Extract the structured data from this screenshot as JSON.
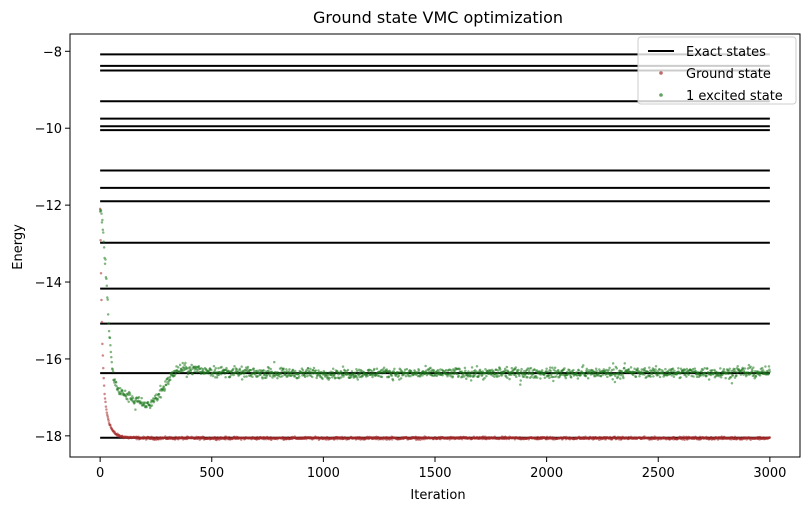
{
  "chart_data": {
    "type": "scatter",
    "title": "Ground state VMC optimization",
    "xlabel": "Iteration",
    "ylabel": "Energy",
    "xlim": [
      -135,
      3135
    ],
    "ylim": [
      -18.55,
      -7.55
    ],
    "x_ticks": [
      0,
      500,
      1000,
      1500,
      2000,
      2500,
      3000
    ],
    "y_ticks": [
      -18,
      -16,
      -14,
      -12,
      -10,
      -8
    ],
    "legend_position": "top-right",
    "legend": [
      {
        "label": "Exact states",
        "kind": "line",
        "color": "#000000"
      },
      {
        "label": "Ground state",
        "kind": "dot",
        "color": "#a52a2a"
      },
      {
        "label": "1 excited state",
        "kind": "dot",
        "color": "#1f7a1f"
      }
    ],
    "exact_states": {
      "name": "Exact states",
      "x_range": [
        0,
        3000
      ],
      "levels": [
        -18.05,
        -16.37,
        -15.08,
        -14.17,
        -12.98,
        -11.9,
        -11.55,
        -11.1,
        -10.05,
        -9.95,
        -9.75,
        -9.3,
        -8.5,
        -8.38,
        -8.08
      ],
      "color": "#000000"
    },
    "series": [
      {
        "name": "Ground state",
        "color": "#a52a2a",
        "x": [
          0,
          5,
          10,
          15,
          20,
          25,
          30,
          40,
          50,
          60,
          70,
          80,
          90,
          100,
          120,
          150,
          200,
          300,
          500,
          1000,
          1500,
          2000,
          2500,
          3000
        ],
        "y": [
          -12.1,
          -14.2,
          -15.6,
          -16.4,
          -16.9,
          -17.2,
          -17.4,
          -17.65,
          -17.8,
          -17.9,
          -17.95,
          -17.99,
          -18.01,
          -18.02,
          -18.04,
          -18.05,
          -18.06,
          -18.06,
          -18.06,
          -18.06,
          -18.06,
          -18.06,
          -18.06,
          -18.06
        ],
        "noise": 0.015
      },
      {
        "name": "1 excited state",
        "color": "#1f7a1f",
        "x": [
          0,
          10,
          20,
          30,
          40,
          50,
          60,
          80,
          100,
          150,
          200,
          230,
          260,
          300,
          340,
          380,
          450,
          600,
          1000,
          1500,
          2000,
          2500,
          3000
        ],
        "y": [
          -12.1,
          -12.4,
          -13.3,
          -14.2,
          -15.2,
          -16.0,
          -16.5,
          -16.8,
          -16.9,
          -17.05,
          -17.2,
          -17.15,
          -16.95,
          -16.6,
          -16.3,
          -16.25,
          -16.3,
          -16.35,
          -16.38,
          -16.37,
          -16.37,
          -16.35,
          -16.35
        ],
        "noise": 0.06
      }
    ]
  }
}
